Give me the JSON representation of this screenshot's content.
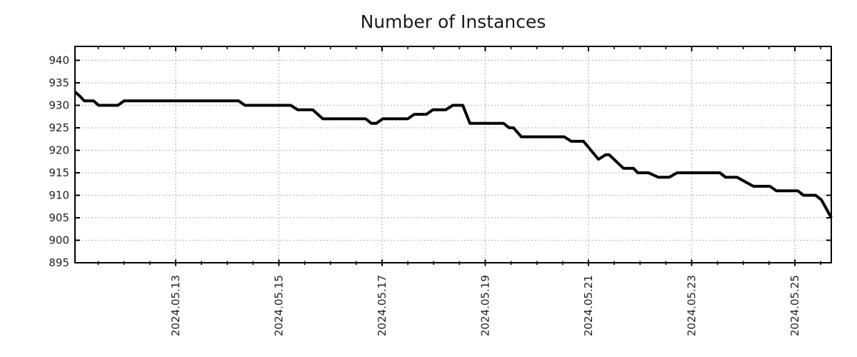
{
  "page": {
    "background": "#ffffff"
  },
  "chart_data": {
    "type": "line",
    "title": "Number of Instances",
    "xlabel": "",
    "ylabel": "",
    "legend": {
      "show": false
    },
    "grid": {
      "show": true,
      "style": "dotted",
      "on": "major-ticks-only"
    },
    "x_axis": {
      "kind": "date",
      "range_days": [
        0,
        14.657
      ],
      "major_tick_positions_days": [
        1.951,
        3.951,
        5.951,
        7.951,
        9.951,
        11.951,
        13.951
      ],
      "tick_labels": [
        "2024.05.13",
        "2024.05.15",
        "2024.05.17",
        "2024.05.19",
        "2024.05.21",
        "2024.05.23",
        "2024.05.25"
      ],
      "minor_tick_interval_days": 0.5,
      "minor_tick_phase_days": 0.451,
      "tick_label_rotation_deg": -90
    },
    "y_axis": {
      "range": [
        895,
        943.1
      ],
      "tick_values": [
        895,
        900,
        905,
        910,
        915,
        920,
        925,
        930,
        935,
        940
      ],
      "grid_min": 900
    },
    "series": [
      {
        "name": "instances",
        "color": "#000000",
        "points": [
          [
            0.0,
            933
          ],
          [
            0.097,
            932
          ],
          [
            0.18,
            931
          ],
          [
            0.36,
            931
          ],
          [
            0.457,
            930
          ],
          [
            0.83,
            930
          ],
          [
            0.955,
            931
          ],
          [
            3.169,
            931
          ],
          [
            3.294,
            930
          ],
          [
            4.18,
            930
          ],
          [
            4.318,
            929
          ],
          [
            4.609,
            929
          ],
          [
            4.706,
            928
          ],
          [
            4.803,
            927
          ],
          [
            5.633,
            927
          ],
          [
            5.744,
            926
          ],
          [
            5.84,
            926
          ],
          [
            5.965,
            927
          ],
          [
            6.449,
            927
          ],
          [
            6.574,
            928
          ],
          [
            6.809,
            928
          ],
          [
            6.934,
            929
          ],
          [
            7.183,
            929
          ],
          [
            7.321,
            930
          ],
          [
            7.515,
            930
          ],
          [
            7.654,
            926
          ],
          [
            8.304,
            926
          ],
          [
            8.415,
            925
          ],
          [
            8.498,
            925
          ],
          [
            8.65,
            923
          ],
          [
            9.481,
            923
          ],
          [
            9.619,
            922
          ],
          [
            9.854,
            922
          ],
          [
            10.145,
            918
          ],
          [
            10.283,
            919
          ],
          [
            10.352,
            919
          ],
          [
            10.629,
            916
          ],
          [
            10.823,
            916
          ],
          [
            10.906,
            915
          ],
          [
            11.114,
            915
          ],
          [
            11.308,
            914
          ],
          [
            11.515,
            914
          ],
          [
            11.668,
            915
          ],
          [
            12.498,
            915
          ],
          [
            12.609,
            914
          ],
          [
            12.83,
            914
          ],
          [
            13.149,
            912
          ],
          [
            13.467,
            912
          ],
          [
            13.592,
            911
          ],
          [
            14.007,
            911
          ],
          [
            14.118,
            910
          ],
          [
            14.353,
            910
          ],
          [
            14.464,
            909
          ],
          [
            14.561,
            907
          ],
          [
            14.657,
            905
          ]
        ]
      }
    ],
    "colors": {
      "line": "#000000",
      "grid": "#a6a6a6",
      "axis": "#000000",
      "text": "#1f1f1f",
      "background": "#ffffff"
    }
  }
}
